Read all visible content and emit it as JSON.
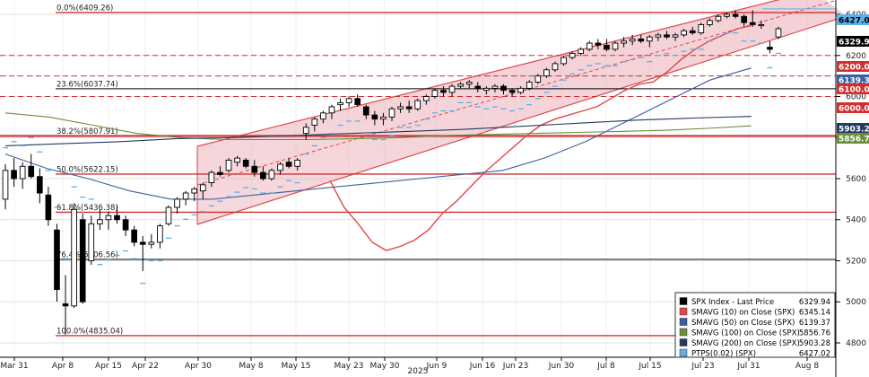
{
  "chart_data": {
    "type": "candlestick",
    "title": "",
    "xlabel": "",
    "year_label": "2025",
    "ylim": [
      4730,
      6470
    ],
    "y_ticks": [
      4800,
      5000,
      5200,
      5400,
      5600,
      5800,
      6000,
      6200,
      6400
    ],
    "x_ticks": [
      "Mar 31",
      "Apr 8",
      "Apr 15",
      "Apr 22",
      "Apr 30",
      "May 8",
      "May 15",
      "May 23",
      "May 30",
      "Jun 9",
      "Jun 16",
      "Jun 23",
      "Jun 30",
      "Jul 8",
      "Jul 15",
      "Jul 23",
      "Jul 31",
      "Aug 8"
    ],
    "grid": true,
    "fib_levels": [
      {
        "label": "0.0%(6409.26)",
        "value": 6409.26,
        "color": "#d03030"
      },
      {
        "label": "23.6%(6037.74)",
        "value": 6037.74,
        "color": "#000000"
      },
      {
        "label": "38.2%(5807.91)",
        "value": 5807.91,
        "color": "#d03030"
      },
      {
        "label": "50.0%(5622.15)",
        "value": 5622.15,
        "color": "#d03030"
      },
      {
        "label": "61.8%(5436.38)",
        "value": 5436.38,
        "color": "#d03030"
      },
      {
        "label": "76.4%(5206.56)",
        "value": 5206.56,
        "color": "#000000"
      },
      {
        "label": "100.0%(4835.04)",
        "value": 4835.04,
        "color": "#d03030"
      }
    ],
    "dashed_levels": [
      6200,
      6100,
      6000
    ],
    "price_labels": [
      {
        "value": "6427.02",
        "color": "#5db0e8"
      },
      {
        "value": "6329.94",
        "color": "#000000"
      },
      {
        "value": "6200.00",
        "color": "#d03030"
      },
      {
        "value": "6139.37",
        "color": "#3c5f9e"
      },
      {
        "value": "6100.00",
        "color": "#d03030"
      },
      {
        "value": "6000.00",
        "color": "#d03030"
      },
      {
        "value": "5903.28",
        "color": "#243a5e"
      },
      {
        "value": "5856.76",
        "color": "#6b8e3a"
      }
    ],
    "candles": [
      [
        5500,
        5670,
        5450,
        5640
      ],
      [
        5640,
        5700,
        5560,
        5600
      ],
      [
        5600,
        5680,
        5550,
        5660
      ],
      [
        5660,
        5720,
        5600,
        5610
      ],
      [
        5610,
        5650,
        5480,
        5530
      ],
      [
        5520,
        5560,
        5370,
        5400
      ],
      [
        5350,
        5380,
        5000,
        5060
      ],
      [
        4990,
        5130,
        4840,
        4980
      ],
      [
        4980,
        5480,
        4970,
        5450
      ],
      [
        5400,
        5430,
        4990,
        5000
      ],
      [
        5200,
        5420,
        5180,
        5380
      ],
      [
        5380,
        5450,
        5350,
        5400
      ],
      [
        5400,
        5440,
        5350,
        5420
      ],
      [
        5420,
        5470,
        5380,
        5400
      ],
      [
        5400,
        5420,
        5320,
        5350
      ],
      [
        5350,
        5370,
        5270,
        5290
      ],
      [
        5290,
        5320,
        5150,
        5280
      ],
      [
        5280,
        5330,
        5260,
        5290
      ],
      [
        5290,
        5380,
        5260,
        5370
      ],
      [
        5380,
        5470,
        5370,
        5460
      ],
      [
        5460,
        5510,
        5430,
        5500
      ],
      [
        5500,
        5540,
        5470,
        5530
      ],
      [
        5530,
        5560,
        5490,
        5550
      ],
      [
        5540,
        5580,
        5500,
        5570
      ],
      [
        5580,
        5640,
        5560,
        5630
      ],
      [
        5630,
        5660,
        5610,
        5620
      ],
      [
        5640,
        5700,
        5630,
        5690
      ],
      [
        5680,
        5710,
        5660,
        5700
      ],
      [
        5690,
        5700,
        5650,
        5660
      ],
      [
        5660,
        5690,
        5610,
        5630
      ],
      [
        5630,
        5660,
        5590,
        5600
      ],
      [
        5600,
        5650,
        5590,
        5640
      ],
      [
        5640,
        5680,
        5620,
        5670
      ],
      [
        5680,
        5700,
        5650,
        5660
      ],
      [
        5660,
        5700,
        5640,
        5690
      ],
      [
        5820,
        5870,
        5790,
        5850
      ],
      [
        5860,
        5900,
        5830,
        5890
      ],
      [
        5890,
        5930,
        5870,
        5920
      ],
      [
        5920,
        5960,
        5890,
        5950
      ],
      [
        5960,
        5990,
        5930,
        5970
      ],
      [
        5970,
        6000,
        5950,
        5990
      ],
      [
        5990,
        6010,
        5950,
        5960
      ],
      [
        5950,
        5960,
        5890,
        5910
      ],
      [
        5910,
        5930,
        5860,
        5890
      ],
      [
        5890,
        5920,
        5860,
        5900
      ],
      [
        5900,
        5950,
        5880,
        5940
      ],
      [
        5940,
        5970,
        5920,
        5950
      ],
      [
        5950,
        5980,
        5920,
        5940
      ],
      [
        5940,
        5990,
        5930,
        5980
      ],
      [
        5980,
        6010,
        5960,
        6000
      ],
      [
        6000,
        6040,
        5990,
        6030
      ],
      [
        6030,
        6050,
        6000,
        6020
      ],
      [
        6020,
        6060,
        6000,
        6050
      ],
      [
        6050,
        6070,
        6040,
        6060
      ],
      [
        6060,
        6080,
        6040,
        6070
      ],
      [
        6050,
        6070,
        6020,
        6040
      ],
      [
        6030,
        6050,
        6010,
        6040
      ],
      [
        6040,
        6060,
        6020,
        6050
      ],
      [
        6050,
        6060,
        6010,
        6030
      ],
      [
        6030,
        6040,
        6000,
        6020
      ],
      [
        6020,
        6050,
        6010,
        6040
      ],
      [
        6040,
        6080,
        6030,
        6070
      ],
      [
        6070,
        6110,
        6060,
        6100
      ],
      [
        6100,
        6140,
        6090,
        6130
      ],
      [
        6130,
        6170,
        6120,
        6160
      ],
      [
        6160,
        6200,
        6150,
        6190
      ],
      [
        6190,
        6220,
        6180,
        6210
      ],
      [
        6210,
        6240,
        6200,
        6230
      ],
      [
        6230,
        6270,
        6220,
        6260
      ],
      [
        6260,
        6280,
        6230,
        6250
      ],
      [
        6250,
        6280,
        6220,
        6230
      ],
      [
        6230,
        6270,
        6220,
        6260
      ],
      [
        6260,
        6290,
        6240,
        6270
      ],
      [
        6270,
        6300,
        6250,
        6280
      ],
      [
        6280,
        6300,
        6260,
        6270
      ],
      [
        6270,
        6300,
        6240,
        6290
      ],
      [
        6290,
        6310,
        6270,
        6300
      ],
      [
        6300,
        6320,
        6280,
        6290
      ],
      [
        6290,
        6310,
        6270,
        6300
      ],
      [
        6300,
        6330,
        6290,
        6320
      ],
      [
        6320,
        6340,
        6300,
        6310
      ],
      [
        6310,
        6360,
        6300,
        6350
      ],
      [
        6350,
        6380,
        6340,
        6370
      ],
      [
        6370,
        6400,
        6360,
        6390
      ],
      [
        6390,
        6410,
        6380,
        6400
      ],
      [
        6400,
        6420,
        6380,
        6390
      ],
      [
        6390,
        6400,
        6340,
        6360
      ],
      [
        6360,
        6420,
        6340,
        6350
      ],
      [
        6350,
        6370,
        6330,
        6350
      ],
      [
        6240,
        6270,
        6210,
        6230
      ],
      [
        6290,
        6340,
        6280,
        6330
      ]
    ],
    "series": [
      {
        "name": "SMAVG (10)  on Close (SPX)",
        "color": "#e0474c",
        "values": [
          5590,
          5460,
          5380,
          5290,
          5250,
          5270,
          5300,
          5350,
          5430,
          5490,
          5560,
          5630,
          5690,
          5750,
          5810,
          5860,
          5890,
          5910,
          5930,
          5950,
          5990,
          6030,
          6060,
          6070,
          6120,
          6180,
          6230,
          6270,
          6300,
          6330,
          6345
        ]
      },
      {
        "name": "SMAVG (50)  on Close (SPX)",
        "color": "#3c5f9e",
        "values": [
          5720,
          5650,
          5600,
          5540,
          5500,
          5500,
          5520,
          5540,
          5560,
          5580,
          5600,
          5620,
          5640,
          5700,
          5780,
          5880,
          5980,
          6080,
          6139
        ]
      },
      {
        "name": "SMAVG (100)  on Close (SPX)",
        "color": "#6b8e3a",
        "values": [
          5920,
          5900,
          5860,
          5820,
          5800,
          5790,
          5790,
          5790,
          5795,
          5800,
          5810,
          5815,
          5820,
          5825,
          5830,
          5835,
          5845,
          5857
        ]
      },
      {
        "name": "SMAVG (200)  on Close (SPX)",
        "color": "#243a5e",
        "values": [
          5760,
          5770,
          5780,
          5795,
          5800,
          5810,
          5820,
          5830,
          5840,
          5855,
          5870,
          5885,
          5895,
          5903
        ]
      },
      {
        "name": "PTPS(0.02)  (SPX)",
        "color": "#5db0e8"
      }
    ],
    "legend": {
      "title": "SPX Index - Last Price",
      "title_value": "6329.94",
      "values": [
        "6345.14",
        "6139.37",
        "5856.76",
        "5903.28",
        "6427.02"
      ],
      "placement": "bottom-right"
    }
  }
}
